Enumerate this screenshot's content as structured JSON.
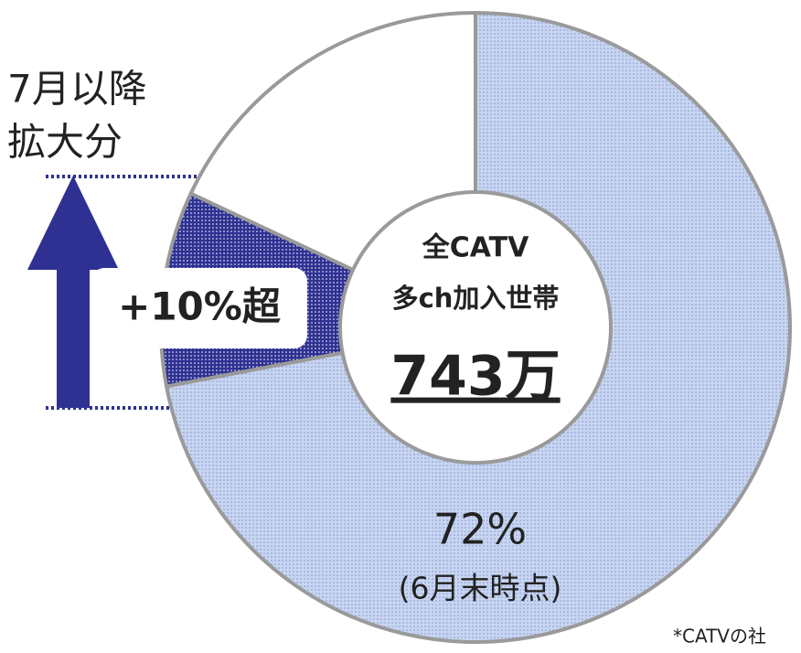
{
  "chart_data": {
    "type": "pie",
    "donut": true,
    "values": [
      72,
      10,
      18
    ],
    "value_labels": [
      "72%",
      "+10%超",
      null
    ],
    "colors": [
      "#c8d5f1",
      "#2e3192",
      "#ffffff"
    ],
    "annotations": {
      "as_of": "(6月末時点)",
      "since_july": [
        "7月以降",
        "拡大分"
      ],
      "footnote": "*CATVの社"
    },
    "center_label": {
      "line1": "全CATV",
      "line2": "多ch加入世帯",
      "total": "743万"
    }
  }
}
